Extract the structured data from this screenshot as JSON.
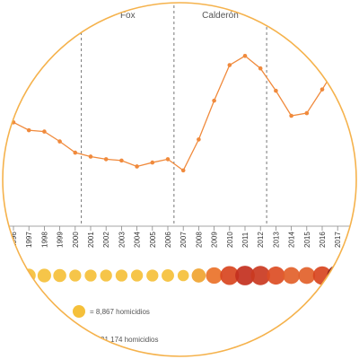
{
  "chart_data": {
    "type": "line",
    "title": "",
    "xlabel": "",
    "ylabel": "",
    "x": [
      "1996",
      "1997",
      "1998",
      "1999",
      "2000",
      "2001",
      "2002",
      "2003",
      "2004",
      "2005",
      "2006",
      "2007",
      "2008",
      "2009",
      "2010",
      "2011",
      "2012",
      "2013",
      "2014",
      "2015",
      "2016",
      "2017"
    ],
    "series": [
      {
        "values": [
          15.5,
          14.3,
          14.1,
          12.6,
          10.9,
          10.3,
          9.9,
          9.7,
          8.8,
          9.4,
          9.9,
          8.2,
          12.9,
          18.8,
          24.2,
          25.6,
          23.7,
          20.3,
          16.5,
          16.9,
          20.5,
          24.3
        ]
      }
    ],
    "ylim": [
      0,
      30
    ],
    "periods": [
      {
        "label": "",
        "start": "1996",
        "end": "2000"
      },
      {
        "label": "Fox",
        "start": "2000",
        "end": "2006"
      },
      {
        "label": "Calderón",
        "start": "2006",
        "end": "2012"
      },
      {
        "label": "",
        "start": "2012",
        "end": "2017"
      }
    ],
    "dividers_after_years": [
      "2000",
      "2006",
      "2012"
    ],
    "bubbles": {
      "values": [
        14,
        13,
        13,
        12,
        10,
        10,
        10,
        10,
        10,
        10,
        11,
        9,
        14,
        19,
        25,
        27,
        26,
        23,
        20,
        20,
        24,
        31
      ],
      "colors": [
        "#f5c03a",
        "#f5c03a",
        "#f5c03a",
        "#f5c03a",
        "#f5c03a",
        "#f5c03a",
        "#f5c03a",
        "#f5c03a",
        "#f5c03a",
        "#f5c03a",
        "#f5c03a",
        "#f5c03a",
        "#f0a431",
        "#ea7229",
        "#d8451f",
        "#c3301e",
        "#ca3921",
        "#dc4d24",
        "#e2612a",
        "#e2612a",
        "#d8451f",
        "#8e1e1a"
      ]
    },
    "legend": [
      {
        "text": "= 8,867 homicidios",
        "swatch_color": "#f5c03a"
      },
      {
        "text": "31,174 homicidios"
      }
    ],
    "grid": false
  },
  "colors": {
    "line": "#f08a3c",
    "circle_border": "#f5b24c",
    "axis": "#888888",
    "divider": "#555555"
  }
}
